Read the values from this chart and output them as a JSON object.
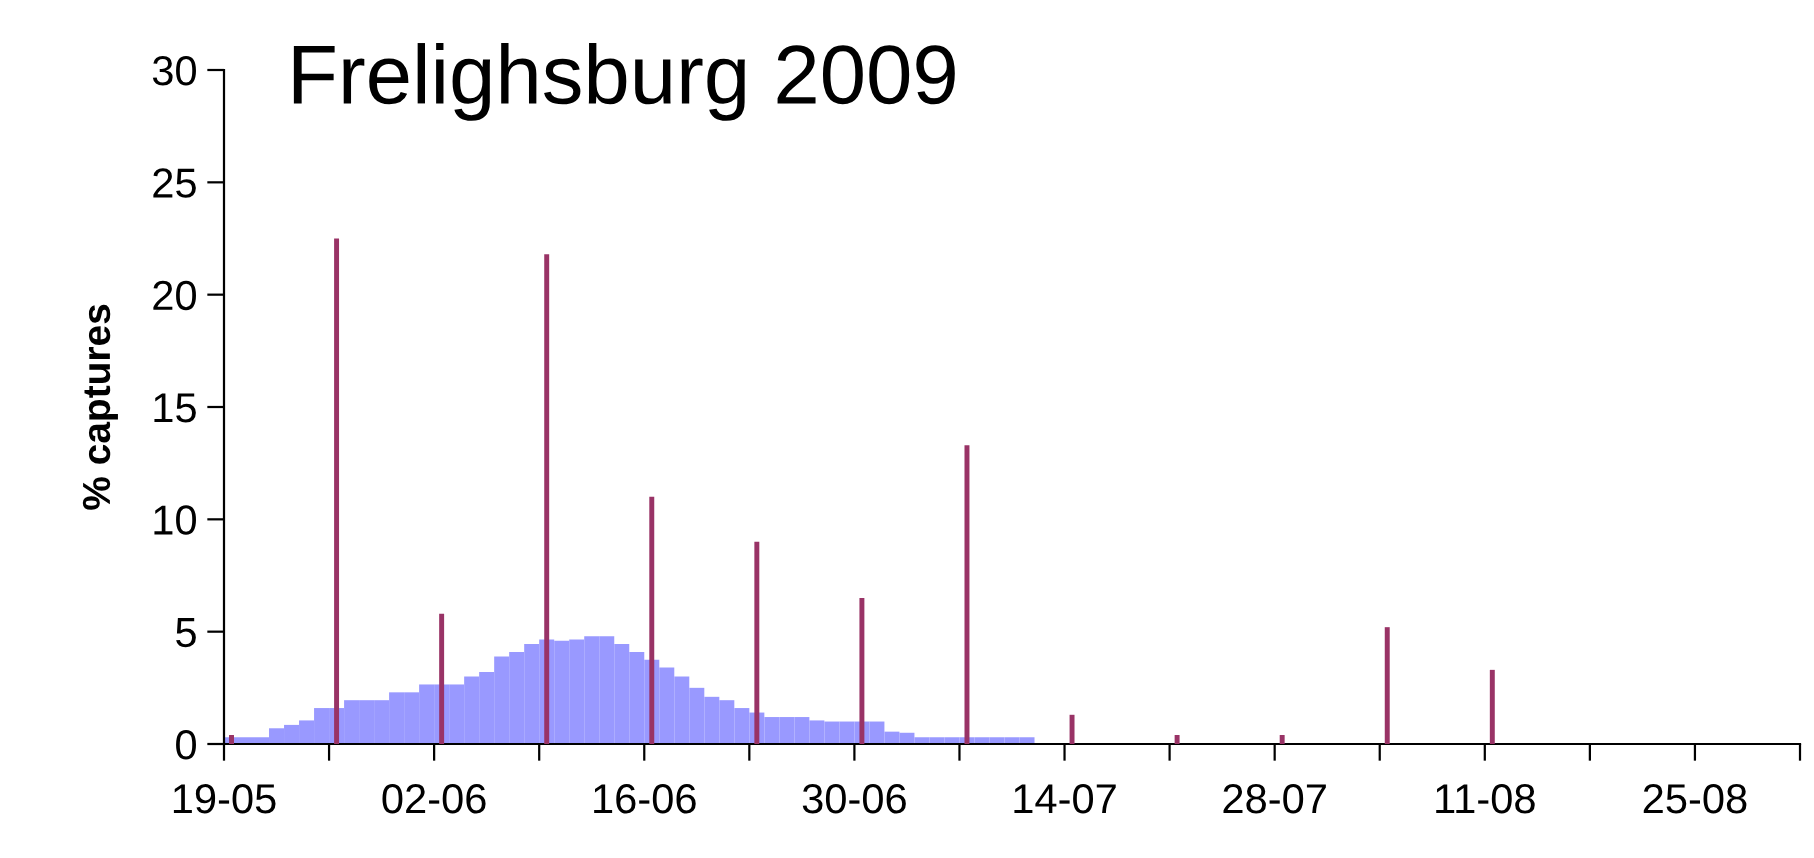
{
  "chart_data": {
    "type": "bar",
    "title": "Frelighsburg 2009",
    "ylabel": "% captures",
    "xlim": [
      "2009-05-19",
      "2009-09-01"
    ],
    "xticks": [
      {
        "value": "2009-05-19",
        "label": "19-05"
      },
      {
        "value": "2009-05-26",
        "label": null
      },
      {
        "value": "2009-06-02",
        "label": "02-06"
      },
      {
        "value": "2009-06-09",
        "label": null
      },
      {
        "value": "2009-06-16",
        "label": "16-06"
      },
      {
        "value": "2009-06-23",
        "label": null
      },
      {
        "value": "2009-06-30",
        "label": "30-06"
      },
      {
        "value": "2009-07-07",
        "label": null
      },
      {
        "value": "2009-07-14",
        "label": "14-07"
      },
      {
        "value": "2009-07-21",
        "label": null
      },
      {
        "value": "2009-07-28",
        "label": "28-07"
      },
      {
        "value": "2009-08-04",
        "label": null
      },
      {
        "value": "2009-08-11",
        "label": "11-08"
      },
      {
        "value": "2009-08-18",
        "label": null
      },
      {
        "value": "2009-08-25",
        "label": "25-08"
      },
      {
        "value": "2009-09-01",
        "label": null
      }
    ],
    "ylim": [
      0,
      30
    ],
    "yticks": [
      0,
      5,
      10,
      15,
      20,
      25,
      30
    ],
    "grid": false,
    "legend": false,
    "series": [
      {
        "color": "#9999ff",
        "x": [
          "2009-05-19",
          "2009-05-20",
          "2009-05-21",
          "2009-05-22",
          "2009-05-23",
          "2009-05-24",
          "2009-05-25",
          "2009-05-26",
          "2009-05-27",
          "2009-05-28",
          "2009-05-29",
          "2009-05-30",
          "2009-05-31",
          "2009-06-01",
          "2009-06-02",
          "2009-06-03",
          "2009-06-04",
          "2009-06-05",
          "2009-06-06",
          "2009-06-07",
          "2009-06-08",
          "2009-06-09",
          "2009-06-10",
          "2009-06-11",
          "2009-06-12",
          "2009-06-13",
          "2009-06-14",
          "2009-06-15",
          "2009-06-16",
          "2009-06-17",
          "2009-06-18",
          "2009-06-19",
          "2009-06-20",
          "2009-06-21",
          "2009-06-22",
          "2009-06-23",
          "2009-06-24",
          "2009-06-25",
          "2009-06-26",
          "2009-06-27",
          "2009-06-28",
          "2009-06-29",
          "2009-06-30",
          "2009-07-01",
          "2009-07-02",
          "2009-07-03",
          "2009-07-04",
          "2009-07-05",
          "2009-07-06",
          "2009-07-07",
          "2009-07-08",
          "2009-07-09",
          "2009-07-10",
          "2009-07-11"
        ],
        "values": [
          0.3,
          0.3,
          0.3,
          0.7,
          0.85,
          1.05,
          1.6,
          1.6,
          1.95,
          1.95,
          1.95,
          2.3,
          2.3,
          2.65,
          2.65,
          2.65,
          3.0,
          3.2,
          3.9,
          4.1,
          4.45,
          4.65,
          4.6,
          4.65,
          4.8,
          4.8,
          4.45,
          4.1,
          3.75,
          3.4,
          3.0,
          2.5,
          2.1,
          1.95,
          1.6,
          1.4,
          1.2,
          1.2,
          1.2,
          1.05,
          1.0,
          1.0,
          1.0,
          1.0,
          0.55,
          0.5,
          0.3,
          0.3,
          0.3,
          0.3,
          0.3,
          0.3,
          0.3,
          0.3
        ]
      },
      {
        "color": "#993366",
        "x": [
          "2009-05-19",
          "2009-05-26",
          "2009-06-02",
          "2009-06-09",
          "2009-06-16",
          "2009-06-23",
          "2009-06-30",
          "2009-07-07",
          "2009-07-14",
          "2009-07-21",
          "2009-07-28",
          "2009-08-04",
          "2009-08-11"
        ],
        "values": [
          0.4,
          22.5,
          5.8,
          21.8,
          11.0,
          9.0,
          6.5,
          13.3,
          1.3,
          0.4,
          0.4,
          5.2,
          3.3
        ]
      }
    ]
  }
}
